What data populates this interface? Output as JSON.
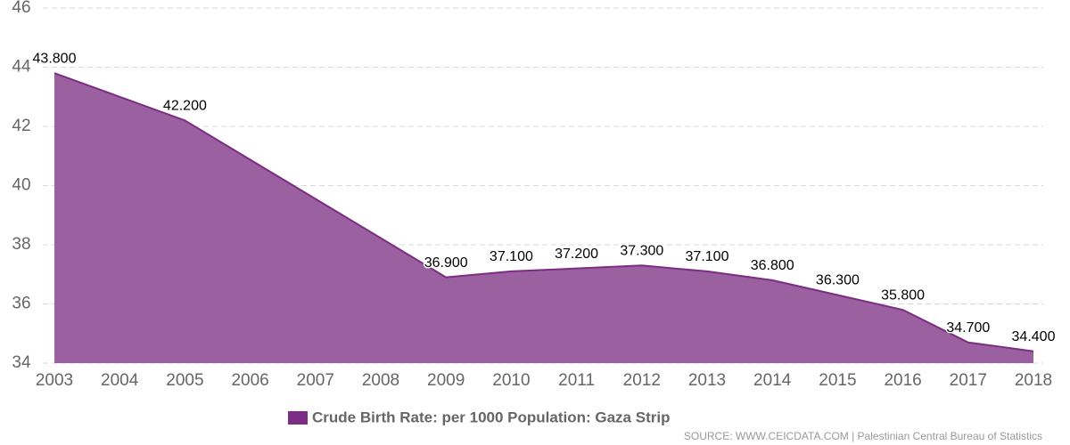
{
  "chart_data": {
    "type": "area",
    "x": [
      2003,
      2005,
      2009,
      2010,
      2011,
      2012,
      2013,
      2014,
      2015,
      2016,
      2017,
      2018
    ],
    "series": [
      {
        "name": "Crude Birth Rate: per 1000 Population: Gaza Strip",
        "color": "#7b2d83",
        "fill": "#9a60a0",
        "values": [
          43.8,
          42.2,
          36.9,
          37.1,
          37.2,
          37.3,
          37.1,
          36.8,
          36.3,
          35.8,
          34.7,
          34.4
        ],
        "value_labels": [
          "43.800",
          "42.200",
          "36.900",
          "37.100",
          "37.200",
          "37.300",
          "37.100",
          "36.800",
          "36.300",
          "35.800",
          "34.700",
          "34.400"
        ]
      }
    ],
    "xlim": [
      2003,
      2018
    ],
    "xticks": [
      2003,
      2004,
      2005,
      2006,
      2007,
      2008,
      2009,
      2010,
      2011,
      2012,
      2013,
      2014,
      2015,
      2016,
      2017,
      2018
    ],
    "ylim": [
      34,
      46
    ],
    "yticks": [
      34,
      36,
      38,
      40,
      42,
      44,
      46
    ],
    "grid": true,
    "legend": "bottom",
    "source": "SOURCE: WWW.CEICDATA.COM | Palestinian Central Bureau of Statistics"
  }
}
